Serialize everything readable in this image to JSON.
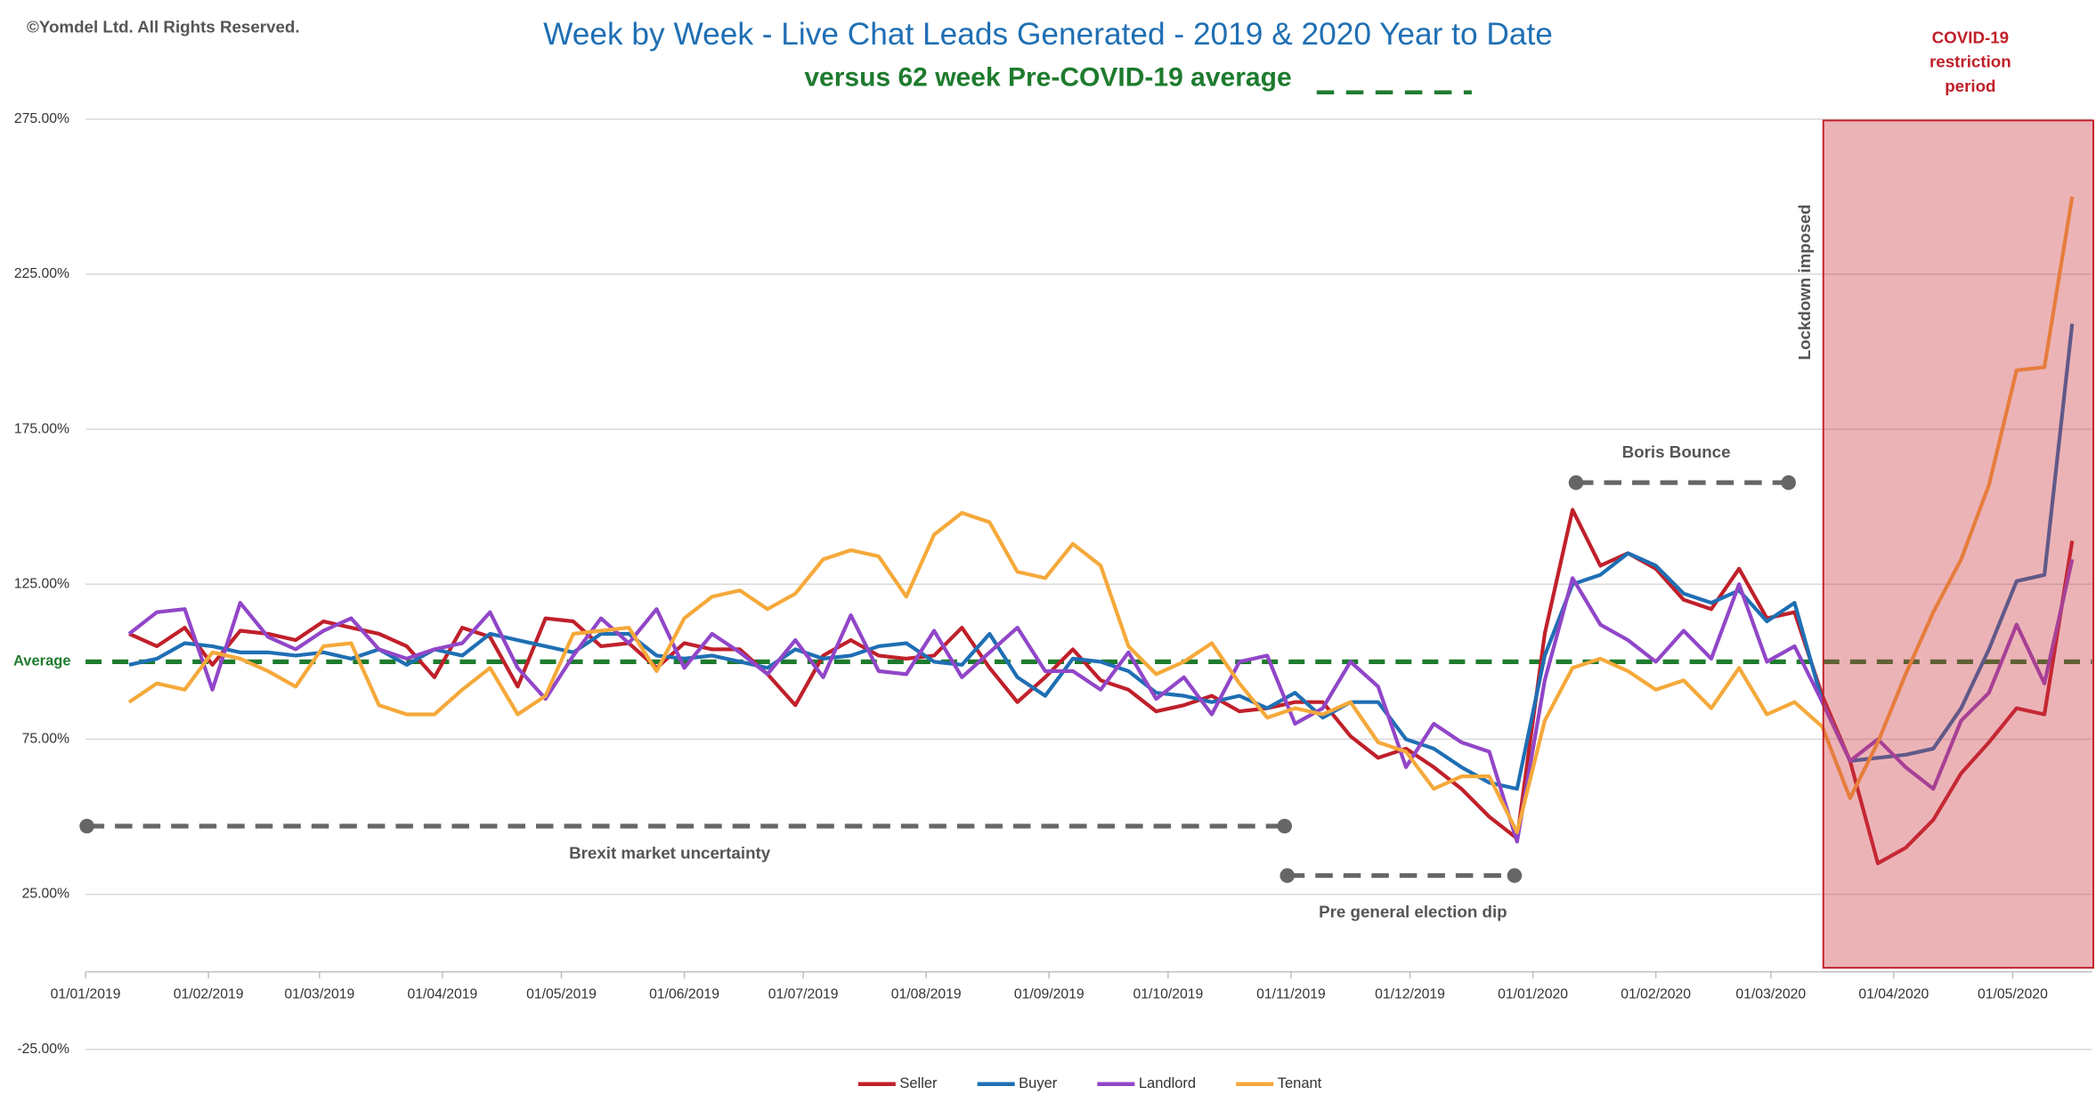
{
  "copyright": "©Yomdel Ltd. All Rights Reserved.",
  "chart_data": {
    "type": "line",
    "title": "Week by Week - Live Chat Leads Generated - 2019 & 2020 Year to Date",
    "subtitle": "versus 62 week Pre-COVID-19 average",
    "x": [
      "12/01/2019",
      "19/01/2019",
      "26/01/2019",
      "02/02/2019",
      "09/02/2019",
      "16/02/2019",
      "23/02/2019",
      "02/03/2019",
      "09/03/2019",
      "16/03/2019",
      "23/03/2019",
      "30/03/2019",
      "06/04/2019",
      "13/04/2019",
      "20/04/2019",
      "27/04/2019",
      "04/05/2019",
      "11/05/2019",
      "18/05/2019",
      "25/05/2019",
      "01/06/2019",
      "08/06/2019",
      "15/06/2019",
      "22/06/2019",
      "29/06/2019",
      "06/07/2019",
      "13/07/2019",
      "20/07/2019",
      "27/07/2019",
      "03/08/2019",
      "10/08/2019",
      "17/08/2019",
      "24/08/2019",
      "31/08/2019",
      "07/09/2019",
      "14/09/2019",
      "21/09/2019",
      "28/09/2019",
      "05/10/2019",
      "12/10/2019",
      "19/10/2019",
      "26/10/2019",
      "02/11/2019",
      "09/11/2019",
      "16/11/2019",
      "23/11/2019",
      "30/11/2019",
      "07/12/2019",
      "14/12/2019",
      "21/12/2019",
      "28/12/2019",
      "04/01/2020",
      "11/01/2020",
      "18/01/2020",
      "25/01/2020",
      "01/02/2020",
      "08/02/2020",
      "15/02/2020",
      "22/02/2020",
      "29/02/2020",
      "07/03/2020",
      "14/03/2020",
      "21/03/2020",
      "28/03/2020",
      "04/04/2020",
      "11/04/2020",
      "18/04/2020",
      "25/04/2020",
      "02/05/2020",
      "09/05/2020",
      "16/05/2020"
    ],
    "xlim": [
      "01/01/2019",
      "21/05/2020"
    ],
    "xticks": [
      "01/01/2019",
      "01/02/2019",
      "01/03/2019",
      "01/04/2019",
      "01/05/2019",
      "01/06/2019",
      "01/07/2019",
      "01/08/2019",
      "01/09/2019",
      "01/10/2019",
      "01/11/2019",
      "01/12/2019",
      "01/01/2020",
      "01/02/2020",
      "01/03/2020",
      "01/04/2020",
      "01/05/2020"
    ],
    "ylim": [
      -25,
      275
    ],
    "yticks": [
      {
        "value": -25,
        "label": "-25.00%"
      },
      {
        "value": 25,
        "label": "25.00%"
      },
      {
        "value": 75,
        "label": "75.00%"
      },
      {
        "value": 125,
        "label": "125.00%"
      },
      {
        "value": 175,
        "label": "175.00%"
      },
      {
        "value": 225,
        "label": "225.00%"
      },
      {
        "value": 275,
        "label": "275.00%"
      }
    ],
    "grid": true,
    "legend": "bottom",
    "average": {
      "label": "Average",
      "value": 100,
      "color": "#1e7b2e"
    },
    "series": [
      {
        "name": "Seller",
        "color": "#c0202a",
        "values": [
          109,
          105,
          111,
          99,
          110,
          109,
          107,
          113,
          111,
          109,
          105,
          95,
          111,
          108,
          92,
          114,
          113,
          105,
          106,
          98,
          106,
          104,
          104,
          96,
          86,
          102,
          107,
          102,
          101,
          102,
          111,
          98,
          87,
          95,
          104,
          94,
          91,
          84,
          86,
          89,
          84,
          85,
          87,
          87,
          76,
          69,
          72,
          66,
          59,
          50,
          43,
          109,
          149,
          131,
          135,
          130,
          120,
          117,
          130,
          114,
          116,
          89,
          68,
          35,
          40,
          49,
          64,
          74,
          85,
          83,
          139
        ]
      },
      {
        "name": "Buyer",
        "color": "#1f6fb4",
        "values": [
          99,
          101,
          106,
          105,
          103,
          103,
          102,
          103,
          101,
          104,
          99,
          104,
          102,
          109,
          107,
          105,
          103,
          109,
          109,
          102,
          101,
          102,
          100,
          98,
          104,
          101,
          102,
          105,
          106,
          100,
          99,
          109,
          95,
          89,
          101,
          100,
          97,
          90,
          89,
          87,
          89,
          85,
          90,
          82,
          87,
          87,
          75,
          72,
          66,
          61,
          59,
          102,
          125,
          128,
          135,
          131,
          122,
          119,
          123,
          113,
          119,
          87,
          68,
          69,
          70,
          72,
          85,
          104,
          126,
          128,
          209
        ]
      },
      {
        "name": "Landlord",
        "color": "#9146c8",
        "values": [
          109,
          116,
          117,
          91,
          119,
          108,
          104,
          110,
          114,
          104,
          101,
          104,
          106,
          116,
          98,
          88,
          102,
          114,
          106,
          117,
          98,
          109,
          103,
          96,
          107,
          95,
          115,
          97,
          96,
          110,
          95,
          103,
          111,
          97,
          97,
          91,
          103,
          88,
          95,
          83,
          100,
          102,
          80,
          85,
          100,
          92,
          66,
          80,
          74,
          71,
          42,
          94,
          127,
          112,
          107,
          100,
          110,
          101,
          125,
          100,
          105,
          87,
          68,
          75,
          66,
          59,
          81,
          90,
          112,
          93,
          133
        ]
      },
      {
        "name": "Tenant",
        "color": "#f5a93a",
        "values": [
          87,
          93,
          91,
          103,
          101,
          97,
          92,
          105,
          106,
          86,
          83,
          83,
          91,
          98,
          83,
          89,
          109,
          110,
          111,
          97,
          114,
          121,
          123,
          117,
          122,
          133,
          136,
          134,
          121,
          141,
          148,
          145,
          129,
          127,
          138,
          131,
          105,
          96,
          100,
          106,
          93,
          82,
          85,
          83,
          87,
          74,
          71,
          59,
          63,
          63,
          45,
          81,
          98,
          101,
          97,
          91,
          94,
          85,
          98,
          83,
          87,
          79,
          56,
          74,
          96,
          116,
          133,
          157,
          194,
          195,
          250
        ]
      }
    ],
    "annotations": [
      "Boris Bounce",
      "Brexit market uncertainty",
      "Pre general election dip",
      "Lockdown imposed"
    ],
    "covid_label": [
      "COVID-19",
      "restriction",
      "period"
    ]
  }
}
